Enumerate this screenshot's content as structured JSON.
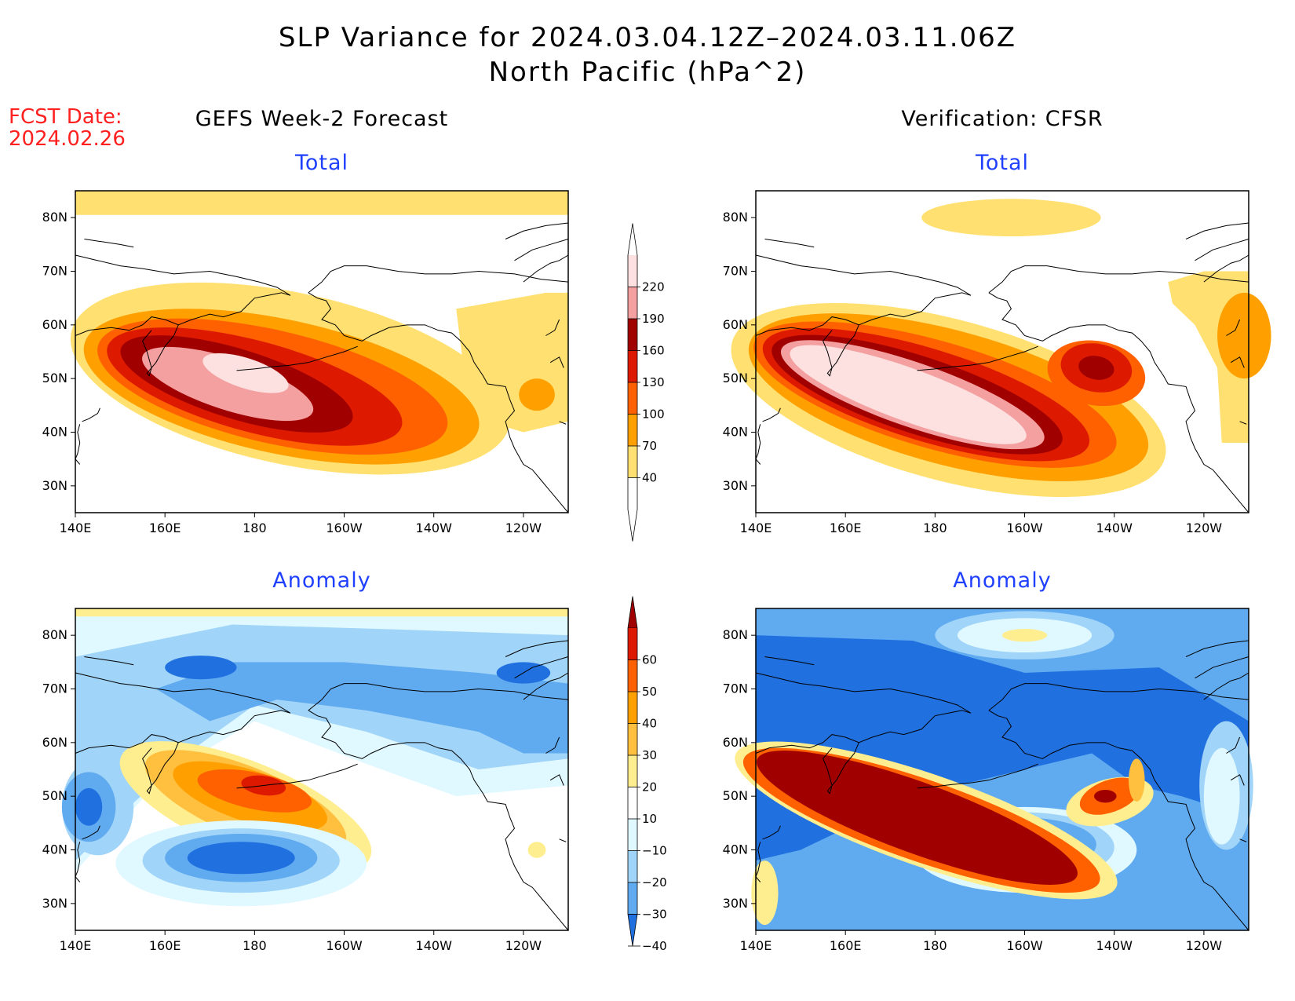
{
  "title": {
    "line1": "SLP Variance for 2024.03.04.12Z–2024.03.11.06Z",
    "line2": "North Pacific (hPa^2)"
  },
  "forecast_date": {
    "label": "FCST Date:",
    "value": "2024.02.26"
  },
  "columns": {
    "left": "GEFS Week-2 Forecast",
    "right": "Verification: CFSR"
  },
  "panel_titles": {
    "top": "Total",
    "bottom": "Anomaly"
  },
  "axes": {
    "lat_labels": [
      "80N",
      "70N",
      "60N",
      "50N",
      "40N",
      "30N"
    ],
    "lat_values": [
      80,
      70,
      60,
      50,
      40,
      30
    ],
    "lon_labels": [
      "140E",
      "160E",
      "180",
      "160W",
      "140W",
      "120W"
    ],
    "lon_values": [
      140,
      160,
      180,
      200,
      220,
      240
    ],
    "lon_range": [
      140,
      250
    ],
    "lat_range": [
      25,
      85
    ]
  },
  "colorbars": {
    "total": {
      "labels": [
        "220",
        "190",
        "160",
        "130",
        "100",
        "70",
        "40"
      ],
      "colors": [
        "#fde0e0",
        "#f4a0a0",
        "#a00000",
        "#dd1a00",
        "#ff6000",
        "#ffa000",
        "#ffe070",
        "#ffffff"
      ]
    },
    "anomaly": {
      "labels": [
        "60",
        "50",
        "40",
        "30",
        "20",
        "10",
        "−10",
        "−20",
        "−30",
        "−40"
      ],
      "colors": [
        "#a00000",
        "#dd1a00",
        "#ff6000",
        "#ffa000",
        "#ffc040",
        "#ffee90",
        "#ffffff",
        "#e0f8ff",
        "#a0d4f8",
        "#60aaf0",
        "#2070e0"
      ]
    }
  },
  "map_colors": {
    "t40": "#ffe070",
    "t70": "#ffa000",
    "t100": "#ff6000",
    "t130": "#dd1a00",
    "t160": "#a00000",
    "t190": "#f4a0a0",
    "t220": "#fde0e0",
    "a10": "#ffee90",
    "a20": "#ffc040",
    "a30": "#ffa000",
    "a40": "#ff6000",
    "a50": "#dd1a00",
    "a60": "#a00000",
    "n10": "#e0f8ff",
    "n20": "#a0d4f8",
    "n30": "#60aaf0",
    "n40": "#2070e0"
  }
}
